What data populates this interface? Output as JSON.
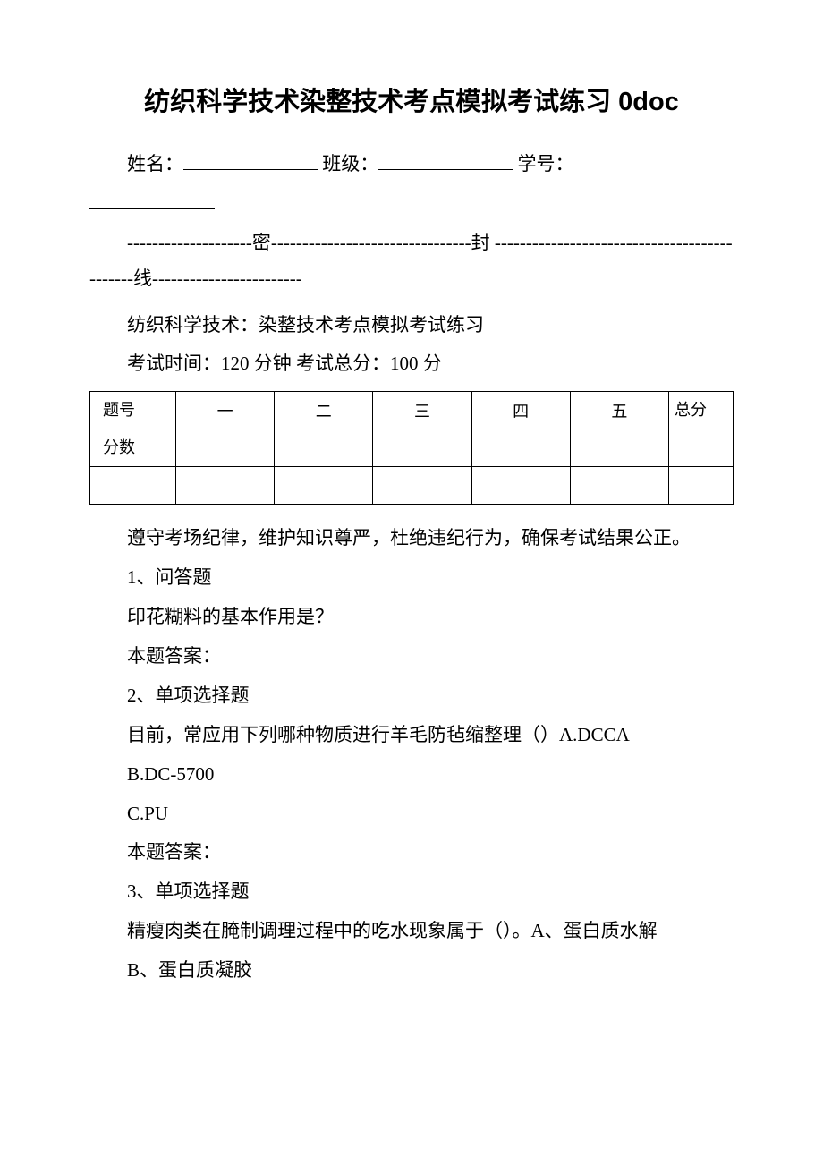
{
  "title": "纺织科学技术染整技术考点模拟考试练习 0doc",
  "header": {
    "name_label": "姓名：",
    "class_label": "班级：",
    "id_label": "学号："
  },
  "seal_line": "--------------------密--------------------------------封 ---------------------------------------------线------------------------",
  "subject_line": "纺织科学技术：染整技术考点模拟考试练习",
  "exam_info": "考试时间：120 分钟  考试总分：100 分",
  "score_table": {
    "row1_label": "题号",
    "row2_label": "分数",
    "cols": [
      "一",
      "二",
      "三",
      "四",
      "五"
    ],
    "total_label": "总分"
  },
  "discipline": "遵守考场纪律，维护知识尊严，杜绝违纪行为，确保考试结果公正。",
  "q1": {
    "num": "1、问答题",
    "text": "印花糊料的基本作用是？",
    "answer_label": "本题答案："
  },
  "q2": {
    "num": "2、单项选择题",
    "text": "目前，常应用下列哪种物质进行羊毛防毡缩整理（）A.DCCA",
    "opt_b": "B.DC-5700",
    "opt_c": "C.PU",
    "answer_label": "本题答案："
  },
  "q3": {
    "num": "3、单项选择题",
    "text": "精瘦肉类在腌制调理过程中的吃水现象属于（）。A、蛋白质水解",
    "opt_b": "B、蛋白质凝胶"
  }
}
